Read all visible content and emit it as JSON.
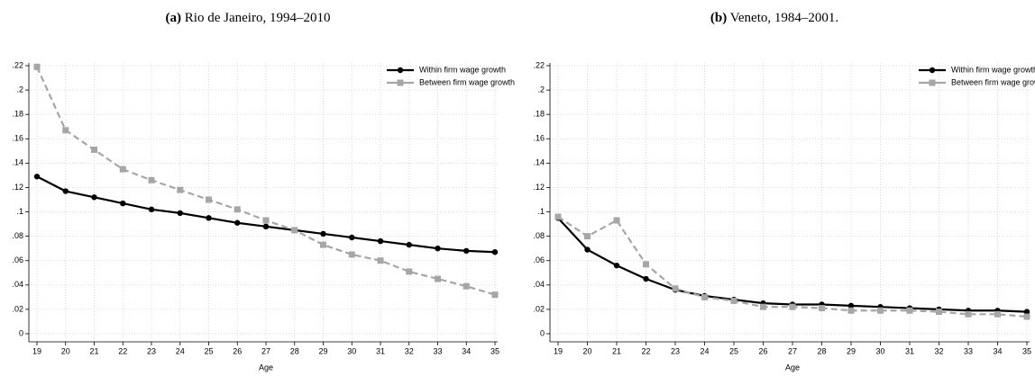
{
  "chart_data": [
    {
      "type": "line",
      "label": "(a)",
      "title": "Rio de Janeiro, 1994–2010",
      "x_label": "Age",
      "x": [
        19,
        20,
        21,
        22,
        23,
        24,
        25,
        26,
        27,
        28,
        29,
        30,
        31,
        32,
        33,
        34,
        35
      ],
      "xlim": [
        19,
        35
      ],
      "xticks": [
        19,
        20,
        21,
        22,
        23,
        24,
        25,
        26,
        27,
        28,
        29,
        30,
        31,
        32,
        33,
        34,
        35
      ],
      "ylim": [
        0,
        0.22
      ],
      "yticks": [
        0,
        {
          "value": 0.02,
          "label": ".02"
        },
        {
          "value": 0.04,
          "label": ".04"
        },
        {
          "value": 0.06,
          "label": ".06"
        },
        {
          "value": 0.08,
          "label": ".08"
        },
        {
          "value": 0.1,
          "label": ".1"
        },
        {
          "value": 0.12,
          "label": ".12"
        },
        {
          "value": 0.14,
          "label": ".14"
        },
        {
          "value": 0.16,
          "label": ".16"
        },
        {
          "value": 0.18,
          "label": ".18"
        },
        {
          "value": 0.2,
          "label": ".2"
        },
        {
          "value": 0.22,
          "label": ".22"
        }
      ],
      "grid": true,
      "legend": "top-right",
      "series": [
        {
          "name": "Within firm wage growth",
          "color": "#000000",
          "style": "solid",
          "marker": "circle",
          "values": [
            0.129,
            0.117,
            0.112,
            0.107,
            0.102,
            0.099,
            0.095,
            0.091,
            0.088,
            0.085,
            0.082,
            0.079,
            0.076,
            0.073,
            0.07,
            0.068,
            0.067
          ]
        },
        {
          "name": "Between firm wage growth",
          "color": "#a6a6a6",
          "style": "dashed",
          "marker": "square",
          "values": [
            0.219,
            0.167,
            0.151,
            0.135,
            0.126,
            0.118,
            0.11,
            0.102,
            0.093,
            0.085,
            0.073,
            0.065,
            0.06,
            0.051,
            0.045,
            0.039,
            0.032
          ]
        }
      ]
    },
    {
      "type": "line",
      "label": "(b)",
      "title": "Veneto, 1984–2001.",
      "x_label": "Age",
      "x": [
        19,
        20,
        21,
        22,
        23,
        24,
        25,
        26,
        27,
        28,
        29,
        30,
        31,
        32,
        33,
        34,
        35
      ],
      "xlim": [
        19,
        35
      ],
      "xticks": [
        19,
        20,
        21,
        22,
        23,
        24,
        25,
        26,
        27,
        28,
        29,
        30,
        31,
        32,
        33,
        34,
        35
      ],
      "ylim": [
        0,
        0.22
      ],
      "yticks": [
        0,
        {
          "value": 0.02,
          "label": ".02"
        },
        {
          "value": 0.04,
          "label": ".04"
        },
        {
          "value": 0.06,
          "label": ".06"
        },
        {
          "value": 0.08,
          "label": ".08"
        },
        {
          "value": 0.1,
          "label": ".1"
        },
        {
          "value": 0.12,
          "label": ".12"
        },
        {
          "value": 0.14,
          "label": ".14"
        },
        {
          "value": 0.16,
          "label": ".16"
        },
        {
          "value": 0.18,
          "label": ".18"
        },
        {
          "value": 0.2,
          "label": ".2"
        },
        {
          "value": 0.22,
          "label": ".22"
        }
      ],
      "grid": true,
      "legend": "top-right",
      "series": [
        {
          "name": "Within firm wage growth",
          "color": "#000000",
          "style": "solid",
          "marker": "circle",
          "values": [
            0.095,
            0.069,
            0.056,
            0.045,
            0.036,
            0.031,
            0.028,
            0.025,
            0.024,
            0.024,
            0.023,
            0.022,
            0.021,
            0.02,
            0.019,
            0.019,
            0.018
          ]
        },
        {
          "name": "Between firm wage growth",
          "color": "#a6a6a6",
          "style": "dashed",
          "marker": "square",
          "values": [
            0.096,
            0.08,
            0.093,
            0.057,
            0.037,
            0.03,
            0.027,
            0.022,
            0.022,
            0.021,
            0.019,
            0.019,
            0.019,
            0.018,
            0.016,
            0.016,
            0.014
          ]
        }
      ]
    }
  ]
}
